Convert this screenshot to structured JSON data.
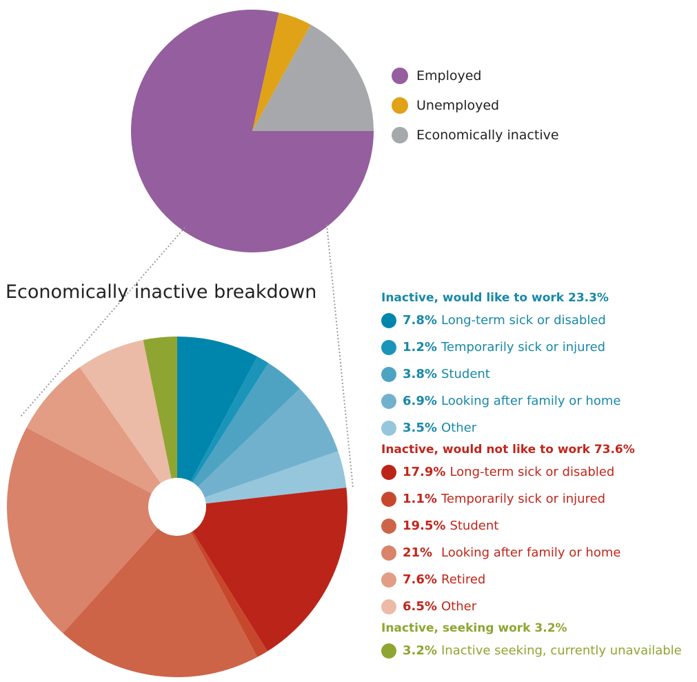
{
  "chart_data": [
    {
      "type": "pie",
      "slices": [
        {
          "label": "Employed",
          "value": 78.5,
          "color": "#955e9e"
        },
        {
          "label": "Unemployed",
          "value": 4.5,
          "color": "#e0a216"
        },
        {
          "label": "Economically inactive",
          "value": 17.0,
          "color": "#a7a8ab"
        }
      ],
      "legend": "right"
    },
    {
      "type": "pie",
      "title": "Economically inactive breakdown",
      "groups": [
        {
          "title": "Inactive, would like to work 23.3%",
          "color": "#1888a8",
          "items": [
            {
              "pct": "7.8%",
              "label": "Long-term sick or disabled",
              "value": 7.8,
              "color": "#0086ad"
            },
            {
              "pct": "1.2%",
              "label": "Temporarily sick or injured",
              "value": 1.2,
              "color": "#1b94b9"
            },
            {
              "pct": "3.8%",
              "label": "Student",
              "value": 3.8,
              "color": "#4ea3c2"
            },
            {
              "pct": "6.9%",
              "label": "Looking after family or home",
              "value": 6.9,
              "color": "#72b1cd"
            },
            {
              "pct": "3.5%",
              "label": "Other",
              "value": 3.5,
              "color": "#96c6dc"
            }
          ]
        },
        {
          "title": "Inactive, would not like to work 73.6%",
          "color": "#c0261b",
          "items": [
            {
              "pct": "17.9%",
              "label": "Long-term sick or disabled",
              "value": 17.9,
              "color": "#bb2419"
            },
            {
              "pct": "1.1%",
              "label": "Temporarily sick or injured",
              "value": 1.1,
              "color": "#c7472d"
            },
            {
              "pct": "19.5%",
              "label": "Student",
              "value": 19.5,
              "color": "#cd6447"
            },
            {
              "pct": "21%",
              "label": "Looking after family or home",
              "value": 21.0,
              "color": "#d8836a"
            },
            {
              "pct": "7.6%",
              "label": "Retired",
              "value": 7.6,
              "color": "#e29d84"
            },
            {
              "pct": "6.5%",
              "label": "Other",
              "value": 6.5,
              "color": "#ebbba7"
            }
          ]
        },
        {
          "title": "Inactive, seeking work 3.2%",
          "color": "#8ea530",
          "items": [
            {
              "pct": "3.2%",
              "label": "Inactive seeking, currently unavailable",
              "value": 3.2,
              "color": "#8fa531"
            }
          ]
        }
      ]
    }
  ]
}
